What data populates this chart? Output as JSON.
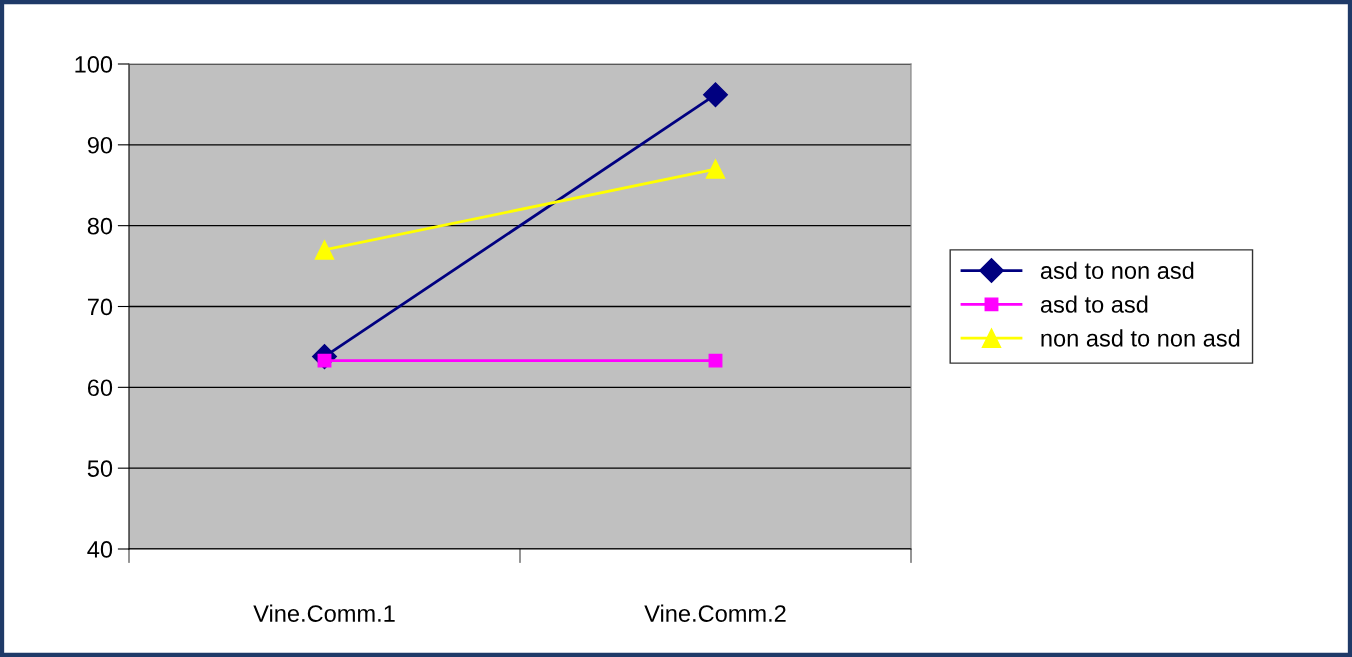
{
  "chart_data": {
    "type": "line",
    "categories": [
      "Vine.Comm.1",
      "Vine.Comm.2"
    ],
    "series": [
      {
        "name": "asd to non asd",
        "color": "#000080",
        "values": [
          63.8,
          96.2
        ],
        "marker": "diamond"
      },
      {
        "name": "asd to asd",
        "color": "#ff00ff",
        "values": [
          63.3,
          63.3
        ],
        "marker": "square"
      },
      {
        "name": "non asd to non asd",
        "color": "#ffff00",
        "values": [
          77,
          87
        ],
        "marker": "triangle"
      }
    ],
    "ylim": [
      40,
      100
    ],
    "yticks": [
      40,
      50,
      60,
      70,
      80,
      90,
      100
    ],
    "grid": "y",
    "legend": "right",
    "line_style": "solid"
  }
}
